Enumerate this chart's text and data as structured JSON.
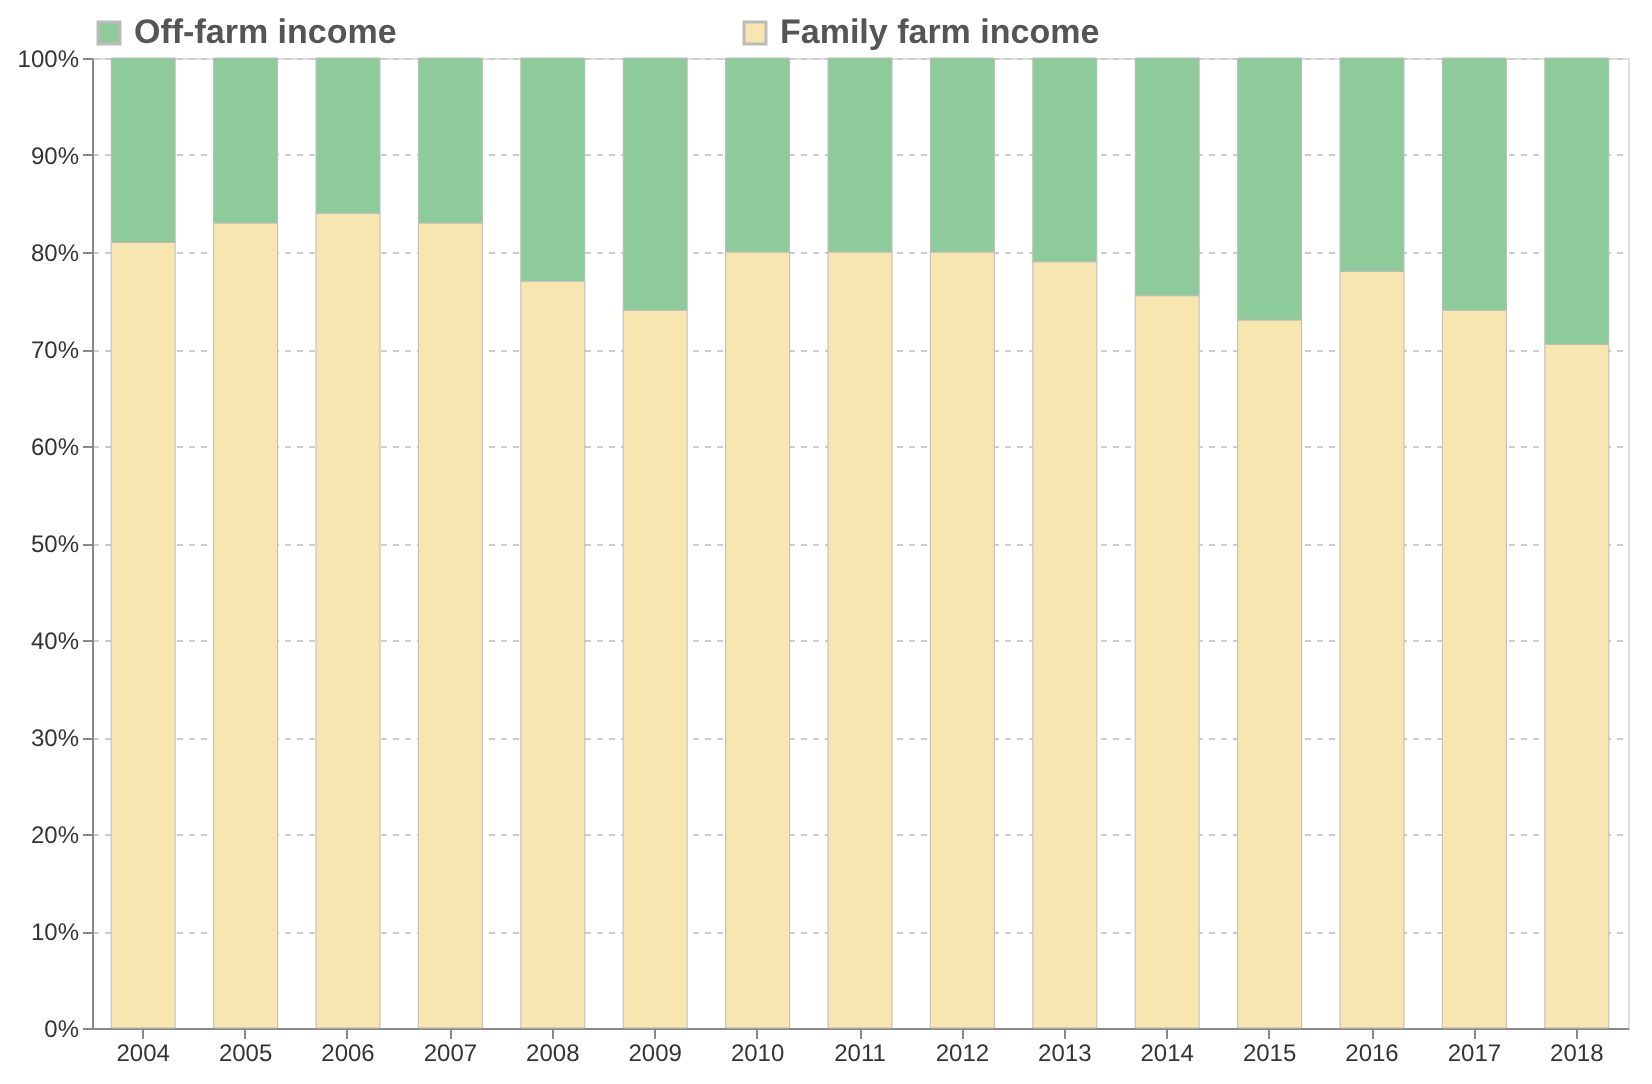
{
  "chart_data": {
    "type": "bar",
    "stacked": true,
    "categories": [
      "2004",
      "2005",
      "2006",
      "2007",
      "2008",
      "2009",
      "2010",
      "2011",
      "2012",
      "2013",
      "2014",
      "2015",
      "2016",
      "2017",
      "2018"
    ],
    "series": [
      {
        "name": "Family farm income",
        "color": "#f7e6b0",
        "values": [
          81,
          83,
          84,
          83,
          77,
          74,
          80,
          80,
          80,
          79,
          75.5,
          73,
          78,
          74,
          70.5
        ]
      },
      {
        "name": "Off-farm income",
        "color": "#8dcc9a",
        "values": [
          19,
          17,
          16,
          17,
          23,
          26,
          20,
          20,
          20,
          21,
          24.5,
          27,
          22,
          26,
          29.5
        ]
      }
    ],
    "ylim": [
      0,
      100
    ],
    "yticks": [
      {
        "value": 0,
        "label": "0%"
      },
      {
        "value": 10,
        "label": "10%"
      },
      {
        "value": 20,
        "label": "20%"
      },
      {
        "value": 30,
        "label": "30%"
      },
      {
        "value": 40,
        "label": "40%"
      },
      {
        "value": 50,
        "label": "50%"
      },
      {
        "value": 60,
        "label": "60%"
      },
      {
        "value": 70,
        "label": "70%"
      },
      {
        "value": 80,
        "label": "80%"
      },
      {
        "value": 90,
        "label": "90%"
      },
      {
        "value": 100,
        "label": "100%"
      }
    ],
    "grid": "y",
    "legend": "top"
  }
}
